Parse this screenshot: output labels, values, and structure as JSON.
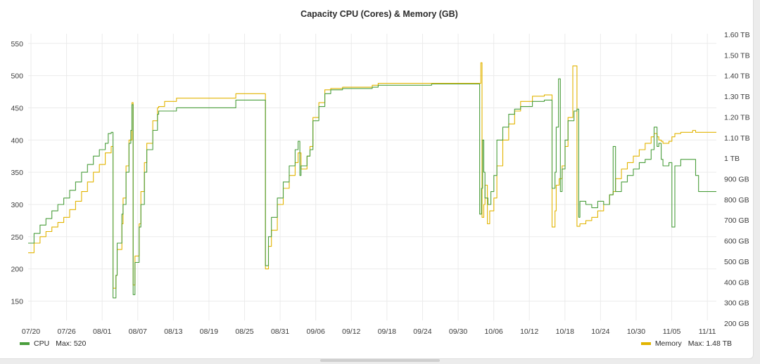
{
  "panel": {
    "title": "Capacity CPU (Cores) & Memory (GB)"
  },
  "colors": {
    "cpu": "#4a9e3c",
    "memory": "#e2b400",
    "grid": "#ebebeb"
  },
  "legend": {
    "cpu": {
      "name": "CPU",
      "stat": "Max: 520"
    },
    "memory": {
      "name": "Memory",
      "stat": "Max: 1.48 TB"
    }
  },
  "chart_data": {
    "type": "line",
    "title": "Capacity CPU (Cores) & Memory (GB)",
    "grid": true,
    "legend_position": "bottom",
    "x_ticks": [
      "07/20",
      "07/26",
      "08/01",
      "08/07",
      "08/13",
      "08/19",
      "08/25",
      "08/31",
      "09/06",
      "09/12",
      "09/18",
      "09/24",
      "09/30",
      "10/06",
      "10/12",
      "10/18",
      "10/24",
      "10/30",
      "11/05",
      "11/11"
    ],
    "y_left_ticks": [
      150,
      200,
      250,
      300,
      350,
      400,
      450,
      500,
      550
    ],
    "y_left_range": [
      120,
      565
    ],
    "y_right_ticks": [
      "200 GB",
      "300 GB",
      "400 GB",
      "500 GB",
      "600 GB",
      "700 GB",
      "800 GB",
      "900 GB",
      "1 TB",
      "1.10 TB",
      "1.20 TB",
      "1.30 TB",
      "1.40 TB",
      "1.50 TB",
      "1.60 TB"
    ],
    "x_range_days": [
      0,
      116
    ],
    "series": [
      {
        "name": "CPU",
        "axis": "left",
        "points": [
          [
            0,
            240
          ],
          [
            1,
            255
          ],
          [
            2,
            268
          ],
          [
            3,
            278
          ],
          [
            4,
            290
          ],
          [
            5,
            300
          ],
          [
            6,
            310
          ],
          [
            7,
            322
          ],
          [
            8,
            335
          ],
          [
            9,
            350
          ],
          [
            10,
            362
          ],
          [
            11,
            375
          ],
          [
            12,
            385
          ],
          [
            13,
            395
          ],
          [
            13.5,
            410
          ],
          [
            14,
            412
          ],
          [
            14.3,
            155
          ],
          [
            14.8,
            190
          ],
          [
            15,
            240
          ],
          [
            15.8,
            285
          ],
          [
            16,
            300
          ],
          [
            16.5,
            350
          ],
          [
            17,
            395
          ],
          [
            17.3,
            415
          ],
          [
            17.5,
            455
          ],
          [
            17.7,
            160
          ],
          [
            18,
            210
          ],
          [
            18.7,
            265
          ],
          [
            19,
            300
          ],
          [
            19.6,
            350
          ],
          [
            20,
            385
          ],
          [
            21,
            415
          ],
          [
            21.8,
            440
          ],
          [
            22,
            445
          ],
          [
            23,
            445
          ],
          [
            25,
            450
          ],
          [
            35,
            462
          ],
          [
            35.5,
            462
          ],
          [
            39.8,
            462
          ],
          [
            40,
            205
          ],
          [
            40.5,
            250
          ],
          [
            41,
            280
          ],
          [
            42,
            310
          ],
          [
            43,
            335
          ],
          [
            44,
            360
          ],
          [
            45,
            385
          ],
          [
            45.5,
            398
          ],
          [
            45.8,
            345
          ],
          [
            46,
            360
          ],
          [
            47,
            375
          ],
          [
            47.5,
            385
          ],
          [
            48,
            430
          ],
          [
            49,
            452
          ],
          [
            50,
            472
          ],
          [
            51,
            478
          ],
          [
            53,
            480
          ],
          [
            55,
            480
          ],
          [
            57,
            480
          ],
          [
            58,
            482
          ],
          [
            58.5,
            482
          ],
          [
            59,
            485
          ],
          [
            59.5,
            485
          ],
          [
            60,
            485
          ],
          [
            63,
            485
          ],
          [
            68,
            487
          ],
          [
            70,
            487
          ],
          [
            72,
            487
          ],
          [
            74,
            487
          ],
          [
            76,
            487
          ],
          [
            76.1,
            285
          ],
          [
            76.4,
            325
          ],
          [
            76.6,
            400
          ],
          [
            76.8,
            350
          ],
          [
            77,
            310
          ],
          [
            77.5,
            300
          ],
          [
            78,
            320
          ],
          [
            78.5,
            345
          ],
          [
            79,
            400
          ],
          [
            80,
            420
          ],
          [
            81,
            440
          ],
          [
            82,
            448
          ],
          [
            83,
            452
          ],
          [
            85,
            460
          ],
          [
            87,
            462
          ],
          [
            88,
            462
          ],
          [
            88.3,
            325
          ],
          [
            88.8,
            350
          ],
          [
            89,
            420
          ],
          [
            89.4,
            495
          ],
          [
            89.7,
            320
          ],
          [
            90,
            355
          ],
          [
            90.5,
            400
          ],
          [
            91,
            430
          ],
          [
            92,
            445
          ],
          [
            92.5,
            448
          ],
          [
            92.8,
            280
          ],
          [
            93,
            305
          ],
          [
            94,
            300
          ],
          [
            95,
            295
          ],
          [
            96,
            305
          ],
          [
            97,
            300
          ],
          [
            98,
            315
          ],
          [
            98.6,
            390
          ],
          [
            99,
            320
          ],
          [
            100,
            335
          ],
          [
            101,
            345
          ],
          [
            102,
            355
          ],
          [
            103,
            365
          ],
          [
            104,
            370
          ],
          [
            105,
            385
          ],
          [
            105.5,
            420
          ],
          [
            106,
            390
          ],
          [
            106.3,
            395
          ],
          [
            106.7,
            370
          ],
          [
            107,
            360
          ],
          [
            108,
            365
          ],
          [
            108.5,
            265
          ],
          [
            109,
            360
          ],
          [
            110,
            370
          ],
          [
            111,
            370
          ],
          [
            112,
            370
          ],
          [
            112.5,
            345
          ],
          [
            113,
            320
          ],
          [
            114,
            320
          ],
          [
            115,
            320
          ],
          [
            116,
            320
          ]
        ]
      },
      {
        "name": "Memory",
        "axis": "left",
        "points": [
          [
            0,
            225
          ],
          [
            1,
            240
          ],
          [
            2,
            250
          ],
          [
            3,
            258
          ],
          [
            4,
            265
          ],
          [
            5,
            272
          ],
          [
            6,
            280
          ],
          [
            7,
            292
          ],
          [
            8,
            305
          ],
          [
            9,
            320
          ],
          [
            10,
            335
          ],
          [
            11,
            350
          ],
          [
            12,
            362
          ],
          [
            13,
            380
          ],
          [
            14,
            390
          ],
          [
            14.3,
            170
          ],
          [
            14.8,
            190
          ],
          [
            15,
            230
          ],
          [
            15.8,
            270
          ],
          [
            16,
            310
          ],
          [
            16.5,
            360
          ],
          [
            17,
            400
          ],
          [
            17.5,
            458
          ],
          [
            17.7,
            175
          ],
          [
            18,
            220
          ],
          [
            18.7,
            270
          ],
          [
            19,
            320
          ],
          [
            19.6,
            365
          ],
          [
            20,
            395
          ],
          [
            21,
            430
          ],
          [
            21.8,
            450
          ],
          [
            22,
            452
          ],
          [
            23,
            460
          ],
          [
            25,
            465
          ],
          [
            35,
            472
          ],
          [
            35.5,
            472
          ],
          [
            39.8,
            472
          ],
          [
            40,
            200
          ],
          [
            40.5,
            235
          ],
          [
            41,
            260
          ],
          [
            42,
            300
          ],
          [
            43,
            325
          ],
          [
            44,
            345
          ],
          [
            45,
            365
          ],
          [
            45.5,
            380
          ],
          [
            46,
            355
          ],
          [
            47,
            375
          ],
          [
            47.5,
            390
          ],
          [
            48,
            435
          ],
          [
            49,
            458
          ],
          [
            50,
            478
          ],
          [
            51,
            480
          ],
          [
            53,
            482
          ],
          [
            55,
            482
          ],
          [
            57,
            482
          ],
          [
            58,
            485
          ],
          [
            58.5,
            485
          ],
          [
            59,
            488
          ],
          [
            59.5,
            488
          ],
          [
            60,
            488
          ],
          [
            63,
            488
          ],
          [
            68,
            488
          ],
          [
            70,
            488
          ],
          [
            72,
            488
          ],
          [
            74,
            488
          ],
          [
            76,
            488
          ],
          [
            76.3,
            520
          ],
          [
            76.5,
            280
          ],
          [
            76.8,
            300
          ],
          [
            77,
            330
          ],
          [
            77.4,
            270
          ],
          [
            77.8,
            290
          ],
          [
            78.5,
            310
          ],
          [
            79,
            360
          ],
          [
            80,
            400
          ],
          [
            81,
            425
          ],
          [
            82,
            445
          ],
          [
            83,
            460
          ],
          [
            85,
            468
          ],
          [
            87,
            470
          ],
          [
            88,
            470
          ],
          [
            88.3,
            265
          ],
          [
            88.8,
            290
          ],
          [
            89,
            330
          ],
          [
            89.5,
            340
          ],
          [
            90,
            360
          ],
          [
            90.5,
            390
          ],
          [
            91,
            435
          ],
          [
            91.8,
            515
          ],
          [
            92.5,
            266
          ],
          [
            93,
            270
          ],
          [
            94,
            275
          ],
          [
            95,
            280
          ],
          [
            96,
            290
          ],
          [
            97,
            300
          ],
          [
            98,
            315
          ],
          [
            98.6,
            320
          ],
          [
            99,
            340
          ],
          [
            100,
            355
          ],
          [
            101,
            365
          ],
          [
            102,
            375
          ],
          [
            103,
            385
          ],
          [
            104,
            395
          ],
          [
            105,
            405
          ],
          [
            105.5,
            410
          ],
          [
            106,
            405
          ],
          [
            106.3,
            400
          ],
          [
            106.7,
            398
          ],
          [
            107,
            395
          ],
          [
            108,
            398
          ],
          [
            108.5,
            405
          ],
          [
            109,
            410
          ],
          [
            110,
            412
          ],
          [
            111,
            412
          ],
          [
            112,
            415
          ],
          [
            112.5,
            412
          ],
          [
            113,
            412
          ],
          [
            114,
            412
          ],
          [
            115,
            412
          ],
          [
            116,
            412
          ]
        ]
      }
    ]
  }
}
